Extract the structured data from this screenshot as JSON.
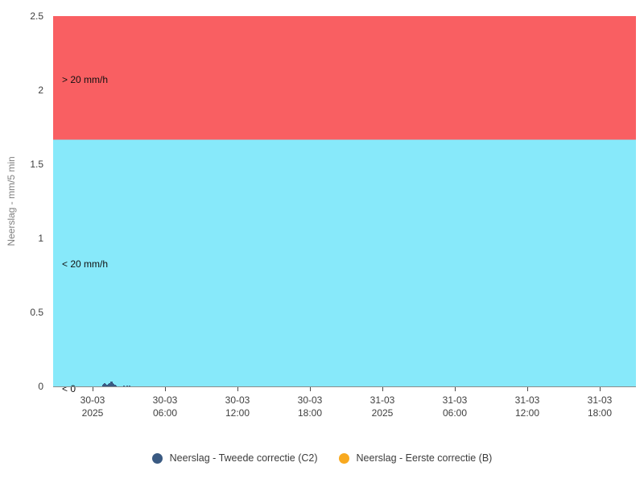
{
  "chart": {
    "y_axis": {
      "title": "Neerslag - mm/5 min",
      "ticks": [
        {
          "label": "2.5",
          "value": 2.5
        },
        {
          "label": "2",
          "value": 2
        },
        {
          "label": "1.5",
          "value": 1.5
        },
        {
          "label": "1",
          "value": 1
        },
        {
          "label": "0.5",
          "value": 0.5
        },
        {
          "label": "0",
          "value": 0
        }
      ],
      "min": 0,
      "max": 2.5
    },
    "x_axis": {
      "ticks": [
        {
          "line1": "30-03",
          "line2": "2025"
        },
        {
          "line1": "30-03",
          "line2": "06:00"
        },
        {
          "line1": "30-03",
          "line2": "12:00"
        },
        {
          "line1": "30-03",
          "line2": "18:00"
        },
        {
          "line1": "31-03",
          "line2": "2025"
        },
        {
          "line1": "31-03",
          "line2": "06:00"
        },
        {
          "line1": "31-03",
          "line2": "12:00"
        },
        {
          "line1": "31-03",
          "line2": "18:00"
        }
      ]
    },
    "bands": {
      "above": {
        "label": "> 20 mm/h",
        "color": "#f95f62",
        "from_mm": 1.6667,
        "to_mm": 2.5
      },
      "below": {
        "label": "< 20 mm/h",
        "color": "#87e9fa",
        "from_mm": 0,
        "to_mm": 1.6667
      },
      "negative": {
        "label": "< 0",
        "color": "#ffffff"
      }
    }
  },
  "legend": {
    "items": [
      {
        "label": "Neerslag - Tweede correctie (C2)",
        "color": "#3a5a82"
      },
      {
        "label": "Neerslag - Eerste correctie (B)",
        "color": "#f8a91f"
      }
    ]
  },
  "chart_data": {
    "type": "bar",
    "title": "",
    "xlabel": "",
    "ylabel": "Neerslag - mm/5 min",
    "ylim": [
      0,
      2.5
    ],
    "grid": false,
    "legend_position": "bottom-center",
    "x_tick_labels": [
      "30-03 2025",
      "30-03 06:00",
      "30-03 12:00",
      "30-03 18:00",
      "31-03 2025",
      "31-03 06:00",
      "31-03 12:00",
      "31-03 18:00"
    ],
    "threshold_bands": [
      {
        "label": "> 20 mm/h",
        "from": 1.6667,
        "to": 2.5,
        "color": "#f95f62"
      },
      {
        "label": "< 20 mm/h",
        "from": 0,
        "to": 1.6667,
        "color": "#87e9fa"
      },
      {
        "label": "< 0",
        "below_axis": true,
        "color": "#ffffff"
      }
    ],
    "series": [
      {
        "name": "Neerslag - Tweede correctie (C2)",
        "color": "#3a5a82",
        "unit": "mm/5 min",
        "points": [
          {
            "day": "30-03",
            "time": "00:50",
            "mm": 0.01
          },
          {
            "day": "30-03",
            "time": "00:55",
            "mm": 0.014
          },
          {
            "day": "30-03",
            "time": "01:00",
            "mm": 0.02
          },
          {
            "day": "30-03",
            "time": "01:05",
            "mm": 0.016
          },
          {
            "day": "30-03",
            "time": "01:10",
            "mm": 0.012
          },
          {
            "day": "30-03",
            "time": "01:15",
            "mm": 0.01
          },
          {
            "day": "30-03",
            "time": "01:20",
            "mm": 0.014
          },
          {
            "day": "30-03",
            "time": "01:25",
            "mm": 0.022
          },
          {
            "day": "30-03",
            "time": "01:30",
            "mm": 0.03
          },
          {
            "day": "30-03",
            "time": "01:35",
            "mm": 0.035
          },
          {
            "day": "30-03",
            "time": "01:40",
            "mm": 0.024
          },
          {
            "day": "30-03",
            "time": "01:45",
            "mm": 0.014
          },
          {
            "day": "30-03",
            "time": "01:50",
            "mm": 0.01
          },
          {
            "day": "30-03",
            "time": "01:55",
            "mm": 0.008
          },
          {
            "day": "30-03",
            "time": "02:35",
            "mm": 0.008
          },
          {
            "day": "30-03",
            "time": "02:50",
            "mm": 0.008
          },
          {
            "day": "30-03",
            "time": "03:05",
            "mm": 0.008
          }
        ]
      },
      {
        "name": "Neerslag - Eerste correctie (B)",
        "color": "#f8a91f",
        "unit": "mm/5 min",
        "points": []
      }
    ]
  }
}
